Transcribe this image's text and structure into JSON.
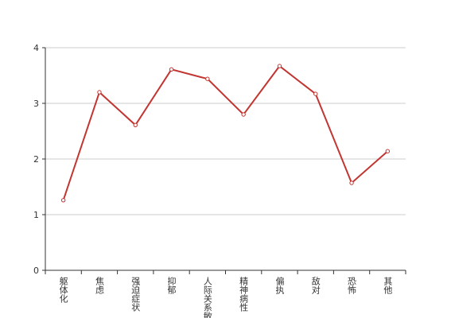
{
  "chart_data": {
    "type": "line",
    "categories": [
      "躯体化",
      "焦虑",
      "强迫症状",
      "抑郁",
      "人际关系敏感",
      "精神病性",
      "偏执",
      "敌对",
      "恐怖",
      "其他"
    ],
    "series": [
      {
        "color": "#c23531",
        "values": [
          1.26,
          3.2,
          2.61,
          3.61,
          3.44,
          2.8,
          3.67,
          3.17,
          1.57,
          2.14
        ]
      }
    ],
    "ylim": [
      0,
      4
    ],
    "yticks": [
      0,
      1,
      2,
      3,
      4
    ],
    "grid": true
  }
}
